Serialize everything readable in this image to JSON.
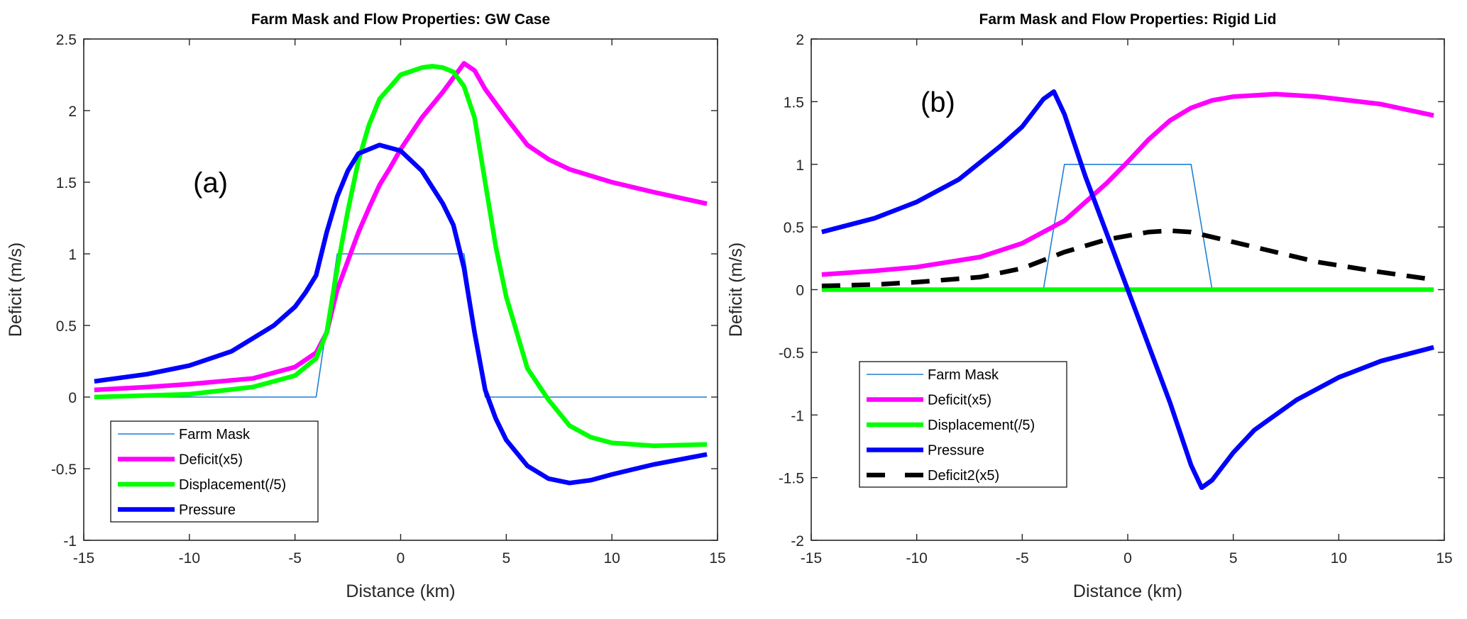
{
  "chart_data": [
    {
      "type": "line",
      "title": "Farm Mask and Flow Properties: GW Case",
      "xlabel": "Distance (km)",
      "ylabel": "Deficit (m/s)",
      "xlim": [
        -15,
        15
      ],
      "ylim": [
        -1,
        2.5
      ],
      "xticks": [
        -15,
        -10,
        -5,
        0,
        5,
        10,
        15
      ],
      "xtick_labels": [
        "-15",
        "-10",
        "-5",
        "0",
        "5",
        "10",
        "15"
      ],
      "yticks": [
        -1,
        -0.5,
        0,
        0.5,
        1,
        1.5,
        2,
        2.5
      ],
      "ytick_labels": [
        "-1",
        "-0.5",
        "0",
        "0.5",
        "1",
        "1.5",
        "2",
        "2.5"
      ],
      "grid": false,
      "legend_placement": "bottom-left",
      "annotation": {
        "text": "(a)",
        "x": -9,
        "y": 1.5
      },
      "series": [
        {
          "name": "Farm Mask",
          "color": "#1f7fd6",
          "style": "thin",
          "x": [
            -14.5,
            -4,
            -3,
            3,
            4,
            14.5
          ],
          "y": [
            0,
            0,
            1,
            1,
            0,
            0
          ]
        },
        {
          "name": "Deficit(x5)",
          "color": "#ff00ff",
          "style": "thick",
          "x": [
            -14.5,
            -12,
            -10,
            -7,
            -5,
            -4,
            -3.5,
            -3,
            -2.5,
            -2,
            -1.5,
            -1,
            -0.5,
            0,
            1,
            2,
            3,
            3.5,
            4,
            5,
            6,
            7,
            8,
            10,
            12,
            14.5
          ],
          "y": [
            0.05,
            0.07,
            0.09,
            0.13,
            0.21,
            0.31,
            0.45,
            0.75,
            0.95,
            1.15,
            1.32,
            1.48,
            1.6,
            1.73,
            1.95,
            2.13,
            2.33,
            2.28,
            2.15,
            1.95,
            1.76,
            1.66,
            1.59,
            1.5,
            1.43,
            1.35
          ]
        },
        {
          "name": "Displacement(/5)",
          "color": "#00ff00",
          "style": "thick",
          "x": [
            -14.5,
            -10,
            -7,
            -5,
            -4,
            -3.5,
            -3,
            -2.5,
            -2,
            -1.5,
            -1,
            0,
            1,
            1.5,
            2,
            2.5,
            3,
            3.5,
            4,
            4.5,
            5,
            6,
            7,
            8,
            9,
            10,
            12,
            14.5
          ],
          "y": [
            0.0,
            0.02,
            0.07,
            0.15,
            0.27,
            0.45,
            0.9,
            1.3,
            1.65,
            1.9,
            2.08,
            2.25,
            2.3,
            2.31,
            2.3,
            2.27,
            2.17,
            1.95,
            1.5,
            1.05,
            0.7,
            0.2,
            -0.02,
            -0.2,
            -0.28,
            -0.32,
            -0.34,
            -0.33
          ]
        },
        {
          "name": "Pressure",
          "color": "#0000ff",
          "style": "thick",
          "x": [
            -14.5,
            -12,
            -10,
            -8,
            -6,
            -5,
            -4.5,
            -4,
            -3.5,
            -3,
            -2.5,
            -2,
            -1,
            0,
            1,
            2,
            2.5,
            3,
            3.5,
            4,
            4.5,
            5,
            6,
            7,
            8,
            9,
            10,
            12,
            14.5
          ],
          "y": [
            0.11,
            0.16,
            0.22,
            0.32,
            0.5,
            0.63,
            0.73,
            0.85,
            1.15,
            1.4,
            1.58,
            1.7,
            1.76,
            1.72,
            1.58,
            1.35,
            1.2,
            0.9,
            0.45,
            0.05,
            -0.15,
            -0.3,
            -0.48,
            -0.57,
            -0.6,
            -0.58,
            -0.54,
            -0.47,
            -0.4
          ]
        }
      ]
    },
    {
      "type": "line",
      "title": "Farm Mask and Flow Properties: Rigid Lid",
      "xlabel": "Distance (km)",
      "ylabel": "Deficit (m/s)",
      "xlim": [
        -15,
        15
      ],
      "ylim": [
        -2,
        2
      ],
      "xticks": [
        -15,
        -10,
        -5,
        0,
        5,
        10,
        15
      ],
      "xtick_labels": [
        "-15",
        "-10",
        "-5",
        "0",
        "5",
        "10",
        "15"
      ],
      "yticks": [
        -2,
        -1.5,
        -1,
        -0.5,
        0,
        0.5,
        1,
        1.5,
        2
      ],
      "ytick_labels": [
        "-2",
        "-1.5",
        "-1",
        "-0.5",
        "0",
        "0.5",
        "1",
        "1.5",
        "2"
      ],
      "grid": false,
      "legend_placement": "bottom-left",
      "annotation": {
        "text": "(b)",
        "x": -9,
        "y": 1.5
      },
      "series": [
        {
          "name": "Farm Mask",
          "color": "#1f7fd6",
          "style": "thin",
          "x": [
            -14.5,
            -4,
            -3,
            3,
            4,
            14.5
          ],
          "y": [
            0,
            0,
            1,
            1,
            0,
            0
          ]
        },
        {
          "name": "Deficit(x5)",
          "color": "#ff00ff",
          "style": "thick",
          "x": [
            -14.5,
            -12,
            -10,
            -7,
            -5,
            -3,
            -2,
            -1,
            0,
            1,
            2,
            3,
            4,
            5,
            7,
            9,
            12,
            14.5
          ],
          "y": [
            0.12,
            0.15,
            0.18,
            0.26,
            0.37,
            0.55,
            0.7,
            0.85,
            1.02,
            1.2,
            1.35,
            1.45,
            1.51,
            1.54,
            1.56,
            1.54,
            1.48,
            1.39
          ]
        },
        {
          "name": "Displacement(/5)",
          "color": "#00ff00",
          "style": "thick",
          "x": [
            -14.5,
            14.5
          ],
          "y": [
            0,
            0
          ]
        },
        {
          "name": "Pressure",
          "color": "#0000ff",
          "style": "thick",
          "x": [
            -14.5,
            -12,
            -10,
            -8,
            -6,
            -5,
            -4,
            -3.5,
            -3,
            -2,
            -1,
            0,
            1,
            2,
            3,
            3.5,
            4,
            5,
            6,
            8,
            10,
            12,
            14.5
          ],
          "y": [
            0.46,
            0.57,
            0.7,
            0.88,
            1.15,
            1.3,
            1.52,
            1.58,
            1.4,
            0.9,
            0.45,
            0.0,
            -0.45,
            -0.9,
            -1.4,
            -1.58,
            -1.52,
            -1.3,
            -1.12,
            -0.88,
            -0.7,
            -0.57,
            -0.46
          ]
        },
        {
          "name": "Deficit2(x5)",
          "color": "#000000",
          "style": "dashed",
          "x": [
            -14.5,
            -12,
            -10,
            -7,
            -5,
            -3,
            -1,
            1,
            2,
            3,
            5,
            7,
            9,
            12,
            14.5
          ],
          "y": [
            0.03,
            0.04,
            0.06,
            0.1,
            0.17,
            0.3,
            0.4,
            0.46,
            0.47,
            0.46,
            0.38,
            0.3,
            0.22,
            0.14,
            0.08
          ]
        }
      ]
    }
  ]
}
